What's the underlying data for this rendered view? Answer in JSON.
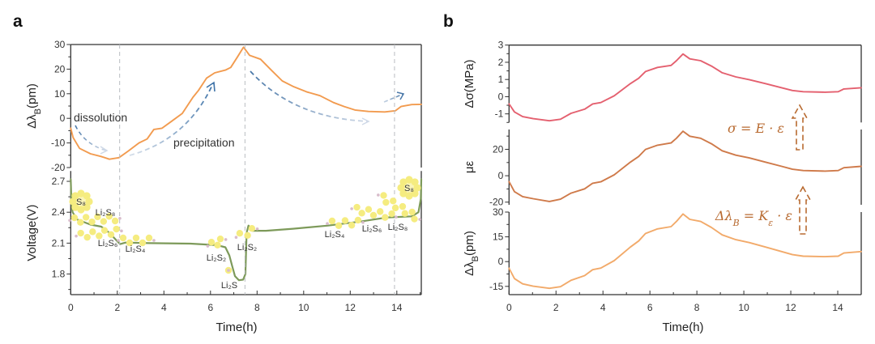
{
  "figure": {
    "panel_labels": [
      "a",
      "b"
    ]
  },
  "chart_data": [
    {
      "type": "line",
      "panel_label": "a",
      "xlabel": "Time(h)",
      "xlim": [
        0,
        15.05
      ],
      "xticks": [
        0,
        2,
        4,
        6,
        8,
        10,
        12,
        14
      ],
      "xminor_step": 1,
      "grid": false,
      "vlines": [
        2.1,
        7.48,
        13.9
      ],
      "panels": [
        {
          "ylabel": {
            "main": "Δλ",
            "sub": "B",
            "unit": "(pm)"
          },
          "ylim": [
            -20,
            30
          ],
          "yticks": [
            30,
            20,
            10,
            0,
            -10,
            -20
          ],
          "yminor_step": 5,
          "series": [
            {
              "name": "Δλ_B",
              "color": "#f29b4f",
              "points": [
                [
                  0,
                  -4.0
                ],
                [
                  0.1,
                  -7.8
                ],
                [
                  0.38,
                  -12.2
                ],
                [
                  0.85,
                  -14.4
                ],
                [
                  1.3,
                  -15.5
                ],
                [
                  1.66,
                  -16.6
                ],
                [
                  2.07,
                  -16.0
                ],
                [
                  2.47,
                  -13.3
                ],
                [
                  2.93,
                  -10.0
                ],
                [
                  3.28,
                  -8.4
                ],
                [
                  3.57,
                  -4.5
                ],
                [
                  3.92,
                  -4.0
                ],
                [
                  4.33,
                  -1.2
                ],
                [
                  4.79,
                  2.0
                ],
                [
                  5.25,
                  8.6
                ],
                [
                  5.48,
                  11.3
                ],
                [
                  5.83,
                  16.3
                ],
                [
                  6.18,
                  18.5
                ],
                [
                  6.64,
                  19.6
                ],
                [
                  6.87,
                  20.7
                ],
                [
                  7.16,
                  25.0
                ],
                [
                  7.42,
                  28.9
                ],
                [
                  7.68,
                  25.6
                ],
                [
                  8.15,
                  24.0
                ],
                [
                  8.61,
                  19.6
                ],
                [
                  9.08,
                  15.2
                ],
                [
                  9.54,
                  13.0
                ],
                [
                  10.12,
                  10.8
                ],
                [
                  10.7,
                  9.2
                ],
                [
                  11.28,
                  6.4
                ],
                [
                  11.74,
                  4.8
                ],
                [
                  12.2,
                  3.4
                ],
                [
                  12.78,
                  2.8
                ],
                [
                  13.48,
                  2.6
                ],
                [
                  13.94,
                  3.1
                ],
                [
                  14.18,
                  4.8
                ],
                [
                  14.64,
                  5.6
                ],
                [
                  15.05,
                  5.7
                ]
              ]
            }
          ]
        },
        {
          "ylabel": {
            "main": "Voltage(V)",
            "sub": "",
            "unit": ""
          },
          "ylim": [
            1.6,
            2.8
          ],
          "yticks": [
            2.7,
            2.4,
            2.1,
            1.8
          ],
          "yminor_step": 0.15,
          "series": [
            {
              "name": "Voltage",
              "color": "#7d9a5a",
              "points": [
                [
                  0,
                  2.72
                ],
                [
                  0.03,
                  2.5
                ],
                [
                  0.08,
                  2.4
                ],
                [
                  0.27,
                  2.33
                ],
                [
                  0.85,
                  2.28
                ],
                [
                  1.31,
                  2.26
                ],
                [
                  1.66,
                  2.2
                ],
                [
                  1.95,
                  2.13
                ],
                [
                  2.12,
                  2.09
                ],
                [
                  2.35,
                  2.105
                ],
                [
                  3.4,
                  2.1
                ],
                [
                  5.14,
                  2.095
                ],
                [
                  6.29,
                  2.08
                ],
                [
                  6.64,
                  2.06
                ],
                [
                  6.81,
                  1.98
                ],
                [
                  6.93,
                  1.88
                ],
                [
                  7.05,
                  1.78
                ],
                [
                  7.22,
                  1.74
                ],
                [
                  7.4,
                  1.745
                ],
                [
                  7.5,
                  1.8
                ],
                [
                  7.55,
                  2.2
                ],
                [
                  7.63,
                  2.27
                ],
                [
                  7.8,
                  2.22
                ],
                [
                  8.38,
                  2.22
                ],
                [
                  9.54,
                  2.24
                ],
                [
                  11.05,
                  2.27
                ],
                [
                  12.44,
                  2.31
                ],
                [
                  13.6,
                  2.35
                ],
                [
                  14.64,
                  2.36
                ],
                [
                  14.93,
                  2.4
                ],
                [
                  15.03,
                  2.53
                ],
                [
                  15.05,
                  2.72
                ]
              ]
            }
          ]
        }
      ],
      "annotations": [
        {
          "text": "dissolution"
        },
        {
          "text": "precipitation"
        }
      ],
      "species_labels": [
        "S₈",
        "Li₂S₈",
        "Li₂S₆",
        "Li₂S₄",
        "Li₂S₂",
        "Li₂S",
        "Li₂S₂",
        "Li₂S₄",
        "Li₂S₆",
        "Li₂S₈",
        "S₈"
      ]
    },
    {
      "type": "line",
      "panel_label": "b",
      "xlabel": "Time(h)",
      "xlim": [
        0,
        15
      ],
      "xticks": [
        0,
        2,
        4,
        6,
        8,
        10,
        12,
        14
      ],
      "xminor_step": 1,
      "grid": false,
      "panels": [
        {
          "ylabel": {
            "main": "Δσ",
            "sub": "",
            "unit": "(MPa)"
          },
          "ylim": [
            -1.5,
            3
          ],
          "yticks": [
            3,
            2,
            1,
            0,
            -1
          ],
          "yminor_step": 0.5,
          "series": [
            {
              "name": "Δσ",
              "color": "#e4606f",
              "points": [
                [
                  0,
                  -0.42
                ],
                [
                  0.23,
                  -0.89
                ],
                [
                  0.58,
                  -1.16
                ],
                [
                  1.03,
                  -1.28
                ],
                [
                  1.72,
                  -1.4
                ],
                [
                  2.19,
                  -1.31
                ],
                [
                  2.64,
                  -0.97
                ],
                [
                  3.22,
                  -0.73
                ],
                [
                  3.56,
                  -0.42
                ],
                [
                  3.91,
                  -0.34
                ],
                [
                  4.48,
                  0.05
                ],
                [
                  5.17,
                  0.76
                ],
                [
                  5.52,
                  1.07
                ],
                [
                  5.81,
                  1.46
                ],
                [
                  6.32,
                  1.7
                ],
                [
                  6.9,
                  1.82
                ],
                [
                  7.13,
                  2.09
                ],
                [
                  7.41,
                  2.48
                ],
                [
                  7.7,
                  2.2
                ],
                [
                  8.16,
                  2.09
                ],
                [
                  8.62,
                  1.78
                ],
                [
                  9.08,
                  1.39
                ],
                [
                  9.66,
                  1.15
                ],
                [
                  10.23,
                  0.99
                ],
                [
                  10.92,
                  0.76
                ],
                [
                  11.61,
                  0.52
                ],
                [
                  12.07,
                  0.36
                ],
                [
                  12.53,
                  0.29
                ],
                [
                  13.45,
                  0.26
                ],
                [
                  14.02,
                  0.29
                ],
                [
                  14.26,
                  0.45
                ],
                [
                  15,
                  0.52
                ]
              ]
            }
          ]
        },
        {
          "ylabel": {
            "main": "με",
            "sub": "",
            "unit": ""
          },
          "ylim": [
            -22,
            35
          ],
          "yticks": [
            20,
            0,
            -20
          ],
          "yminor_step": 10,
          "series": [
            {
              "name": "με",
              "color": "#cf7a4a",
              "points": [
                [
                  0,
                  -4.5
                ],
                [
                  0.23,
                  -12.1
                ],
                [
                  0.58,
                  -15.8
                ],
                [
                  1.03,
                  -17.4
                ],
                [
                  1.72,
                  -19.5
                ],
                [
                  2.19,
                  -17.8
                ],
                [
                  2.64,
                  -13.2
                ],
                [
                  3.22,
                  -9.9
                ],
                [
                  3.56,
                  -5.7
                ],
                [
                  3.91,
                  -4.6
                ],
                [
                  4.48,
                  0.7
                ],
                [
                  5.17,
                  10.3
                ],
                [
                  5.52,
                  14.6
                ],
                [
                  5.81,
                  19.9
                ],
                [
                  6.32,
                  23.1
                ],
                [
                  6.9,
                  24.8
                ],
                [
                  7.13,
                  28.4
                ],
                [
                  7.41,
                  33.7
                ],
                [
                  7.7,
                  29.9
                ],
                [
                  8.16,
                  28.4
                ],
                [
                  8.62,
                  24.2
                ],
                [
                  9.08,
                  18.9
                ],
                [
                  9.66,
                  15.6
                ],
                [
                  10.23,
                  13.5
                ],
                [
                  10.92,
                  10.3
                ],
                [
                  11.61,
                  7.1
                ],
                [
                  12.07,
                  4.9
                ],
                [
                  12.53,
                  3.9
                ],
                [
                  13.45,
                  3.5
                ],
                [
                  14.02,
                  3.9
                ],
                [
                  14.26,
                  6.1
                ],
                [
                  15,
                  7.1
                ]
              ]
            }
          ]
        },
        {
          "ylabel": {
            "main": "Δλ",
            "sub": "B",
            "unit": "(pm)"
          },
          "ylim": [
            -20,
            30
          ],
          "yticks": [
            30,
            15,
            0,
            -15
          ],
          "yminor_step": 7.5,
          "series": [
            {
              "name": "Δλ_B",
              "color": "#f2aa6a",
              "points": [
                [
                  0,
                  -4.0
                ],
                [
                  0.23,
                  -10.3
                ],
                [
                  0.58,
                  -13.5
                ],
                [
                  1.03,
                  -14.9
                ],
                [
                  1.72,
                  -16.2
                ],
                [
                  2.19,
                  -15.2
                ],
                [
                  2.64,
                  -11.3
                ],
                [
                  3.22,
                  -8.5
                ],
                [
                  3.56,
                  -4.9
                ],
                [
                  3.91,
                  -3.9
                ],
                [
                  4.48,
                  0.6
                ],
                [
                  5.17,
                  8.8
                ],
                [
                  5.52,
                  12.5
                ],
                [
                  5.81,
                  17.0
                ],
                [
                  6.32,
                  19.8
                ],
                [
                  6.9,
                  21.2
                ],
                [
                  7.13,
                  24.3
                ],
                [
                  7.41,
                  28.8
                ],
                [
                  7.7,
                  25.6
                ],
                [
                  8.16,
                  24.3
                ],
                [
                  8.62,
                  20.7
                ],
                [
                  9.08,
                  16.2
                ],
                [
                  9.66,
                  13.3
                ],
                [
                  10.23,
                  11.5
                ],
                [
                  10.92,
                  8.8
                ],
                [
                  11.61,
                  6.1
                ],
                [
                  12.07,
                  4.2
                ],
                [
                  12.53,
                  3.3
                ],
                [
                  13.45,
                  3.0
                ],
                [
                  14.02,
                  3.3
                ],
                [
                  14.26,
                  5.2
                ],
                [
                  15,
                  6.1
                ]
              ]
            }
          ]
        }
      ],
      "equation_color": "#b86a30",
      "equations": [
        {
          "segments": [
            {
              "t": "σ = E · ε",
              "sub": false
            }
          ]
        },
        {
          "segments": [
            {
              "t": "Δλ",
              "sub": false
            },
            {
              "t": "B",
              "sub": true
            },
            {
              "t": " = K",
              "sub": false
            },
            {
              "t": "ε",
              "sub": true
            },
            {
              "t": " · ε",
              "sub": false
            }
          ]
        }
      ]
    }
  ]
}
